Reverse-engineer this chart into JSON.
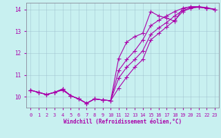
{
  "xlabel": "Windchill (Refroidissement éolien,°C)",
  "bg_color": "#c8f0f0",
  "line_color": "#aa00aa",
  "grid_color": "#99bbcc",
  "xlim": [
    -0.5,
    23.5
  ],
  "ylim": [
    9.5,
    14.3
  ],
  "xticks": [
    0,
    1,
    2,
    3,
    4,
    5,
    6,
    7,
    8,
    9,
    10,
    11,
    12,
    13,
    14,
    15,
    16,
    17,
    18,
    19,
    20,
    21,
    22,
    23
  ],
  "yticks": [
    10,
    11,
    12,
    13,
    14
  ],
  "line1_x": [
    0,
    1,
    2,
    3,
    4,
    5,
    6,
    7,
    8,
    9,
    10,
    11,
    12,
    13,
    14,
    15,
    16,
    17,
    18,
    19,
    20,
    21,
    22
  ],
  "line1": [
    10.3,
    10.2,
    10.1,
    10.2,
    10.35,
    10.05,
    9.9,
    9.7,
    9.9,
    9.85,
    9.82,
    11.75,
    12.5,
    12.75,
    12.9,
    13.9,
    13.7,
    13.6,
    13.45,
    14.05,
    14.12,
    14.12,
    14.05
  ],
  "line2_x": [
    0,
    1,
    2,
    3,
    4,
    5,
    6,
    7,
    8,
    9,
    10,
    11,
    12,
    13,
    14,
    15,
    16,
    17,
    18,
    19,
    20,
    21,
    22,
    23
  ],
  "line2": [
    10.3,
    10.2,
    10.1,
    10.2,
    10.35,
    10.05,
    9.9,
    9.7,
    9.9,
    9.85,
    9.82,
    11.2,
    11.7,
    12.1,
    12.6,
    13.25,
    13.5,
    13.7,
    13.9,
    14.05,
    14.12,
    14.12,
    14.08,
    14.0
  ],
  "line3_x": [
    0,
    1,
    2,
    3,
    4,
    5,
    6,
    7,
    8,
    9,
    10,
    11,
    12,
    13,
    14,
    15,
    16,
    17,
    18,
    19,
    20,
    21,
    22,
    23
  ],
  "line3": [
    10.3,
    10.2,
    10.1,
    10.2,
    10.35,
    10.05,
    9.9,
    9.7,
    9.9,
    9.85,
    9.82,
    10.85,
    11.35,
    11.7,
    12.1,
    12.85,
    13.15,
    13.4,
    13.7,
    13.95,
    14.08,
    14.1,
    14.05,
    14.0
  ],
  "line4_x": [
    0,
    1,
    2,
    3,
    4,
    5,
    6,
    7,
    8,
    9,
    10,
    11,
    12,
    13,
    14,
    15,
    16,
    17,
    18,
    19,
    20,
    21,
    22,
    23
  ],
  "line4": [
    10.3,
    10.2,
    10.1,
    10.2,
    10.3,
    10.05,
    9.9,
    9.7,
    9.9,
    9.85,
    9.82,
    10.4,
    10.9,
    11.35,
    11.7,
    12.6,
    12.9,
    13.2,
    13.5,
    13.9,
    14.05,
    14.1,
    14.05,
    14.0
  ]
}
